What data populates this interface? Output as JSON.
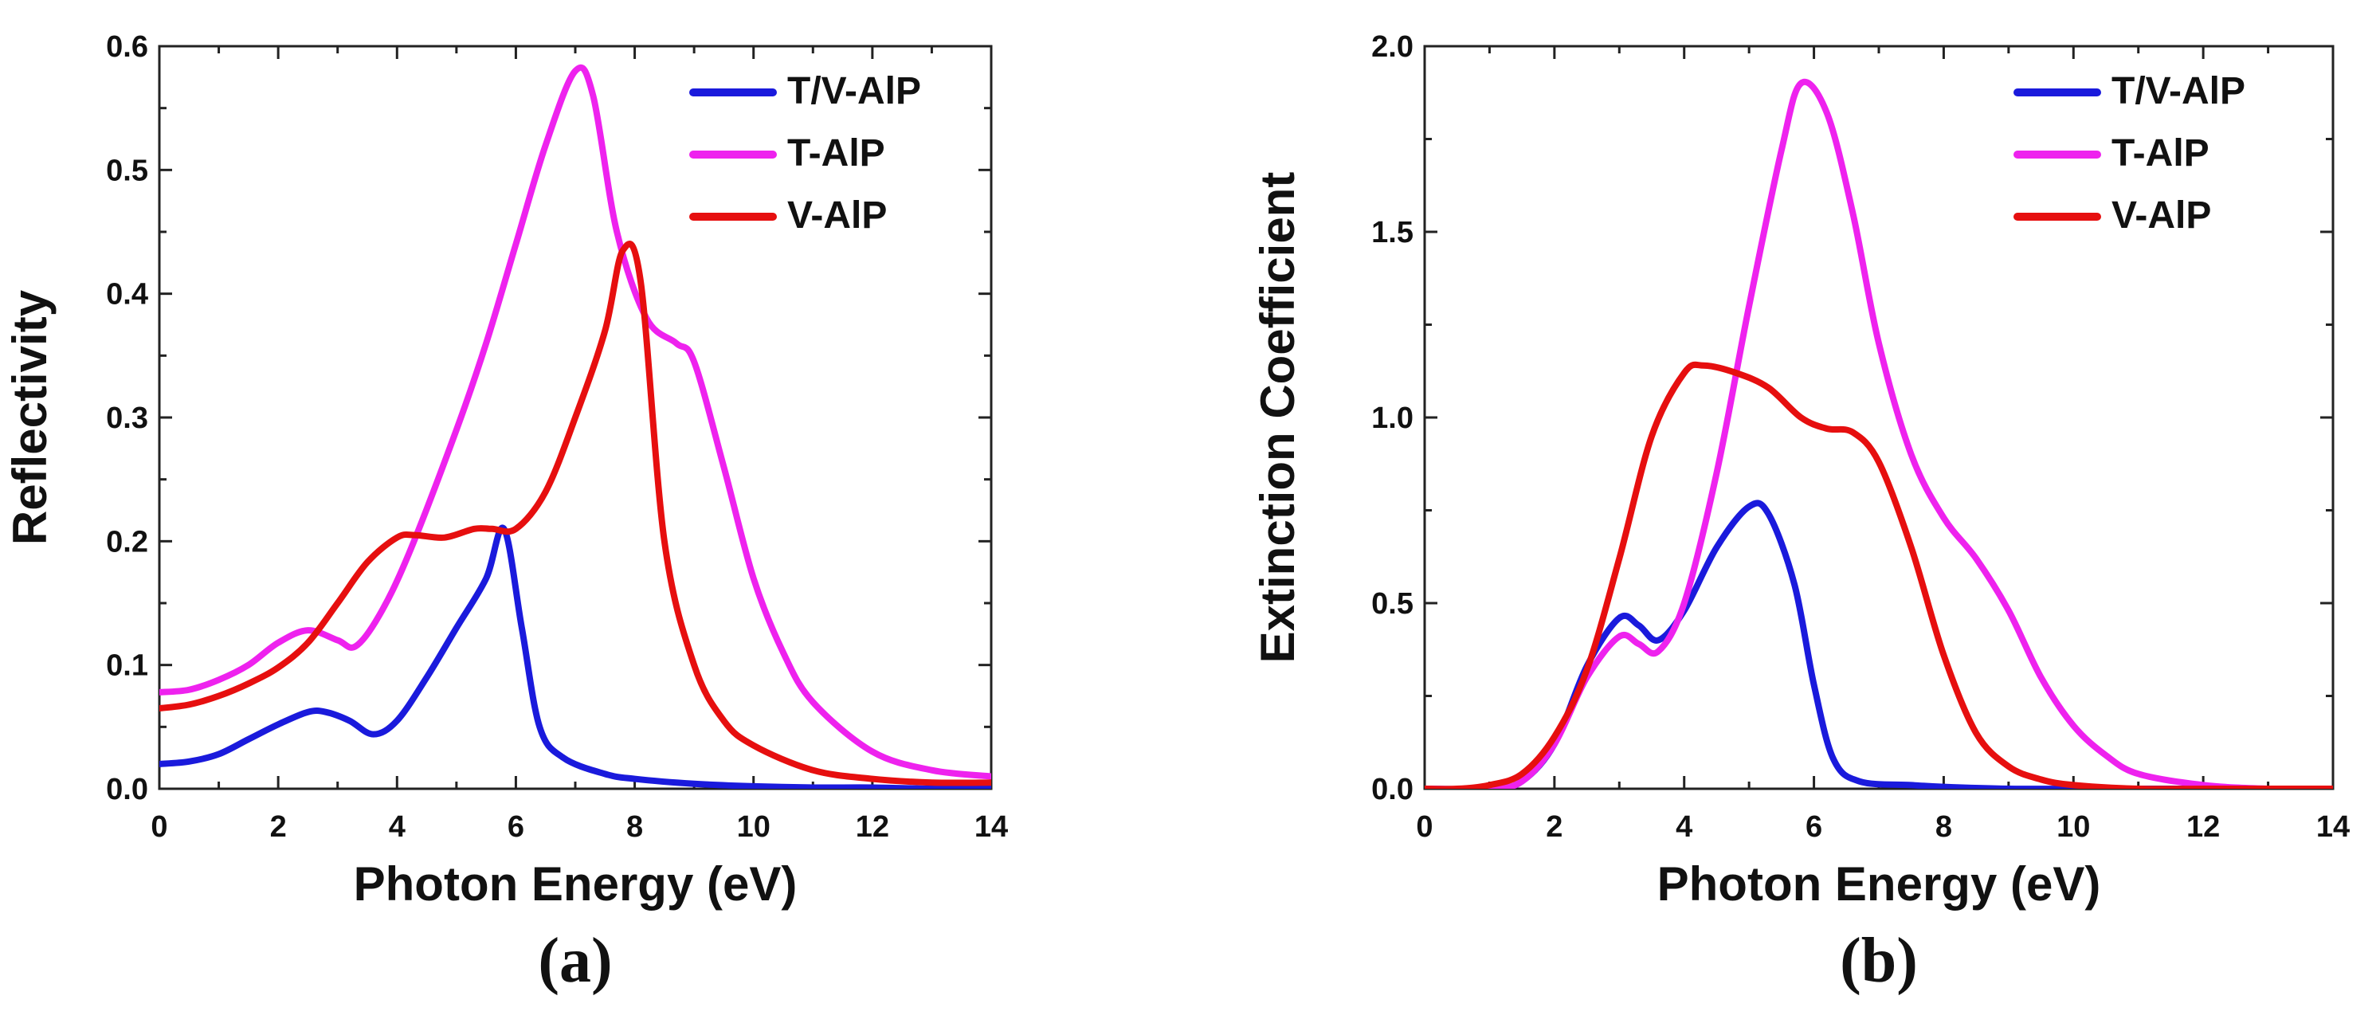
{
  "chart_data": [
    {
      "type": "line",
      "panel_label": "(a)",
      "title": "",
      "xlabel": "Photon Energy (eV)",
      "ylabel": "Reflectivity",
      "xlim": [
        0,
        14
      ],
      "ylim": [
        0,
        0.6
      ],
      "xticks": [
        0,
        2,
        4,
        6,
        8,
        10,
        12,
        14
      ],
      "yticks": [
        0.0,
        0.1,
        0.2,
        0.3,
        0.4,
        0.5,
        0.6
      ],
      "xtick_labels": [
        "0",
        "2",
        "4",
        "6",
        "8",
        "10",
        "12",
        "14"
      ],
      "ytick_labels": [
        "0.0",
        "0.1",
        "0.2",
        "0.3",
        "0.4",
        "0.5",
        "0.6"
      ],
      "legend_position": "top-right",
      "series": [
        {
          "name": "T/V-AlP",
          "color": "#1a1adc",
          "x": [
            0,
            0.5,
            1,
            1.5,
            2,
            2.5,
            2.8,
            3.2,
            3.6,
            4,
            4.5,
            5,
            5.5,
            5.8,
            6.1,
            6.4,
            6.8,
            7.5,
            8,
            9,
            10,
            11,
            12,
            13,
            14
          ],
          "y": [
            0.02,
            0.022,
            0.028,
            0.04,
            0.052,
            0.062,
            0.062,
            0.055,
            0.044,
            0.055,
            0.09,
            0.13,
            0.17,
            0.21,
            0.13,
            0.05,
            0.025,
            0.012,
            0.008,
            0.004,
            0.002,
            0.001,
            0.001,
            0.0,
            0.0
          ]
        },
        {
          "name": "T-AlP",
          "color": "#ee22ee",
          "x": [
            0,
            0.5,
            1,
            1.5,
            2,
            2.5,
            3,
            3.3,
            3.7,
            4.2,
            5,
            5.5,
            6,
            6.5,
            7,
            7.3,
            7.7,
            8.2,
            8.7,
            9,
            9.5,
            10,
            10.5,
            11,
            12,
            13,
            14
          ],
          "y": [
            0.078,
            0.08,
            0.088,
            0.1,
            0.118,
            0.128,
            0.12,
            0.115,
            0.14,
            0.19,
            0.29,
            0.36,
            0.44,
            0.52,
            0.58,
            0.56,
            0.45,
            0.38,
            0.36,
            0.345,
            0.26,
            0.17,
            0.11,
            0.07,
            0.03,
            0.015,
            0.01
          ]
        },
        {
          "name": "V-AlP",
          "color": "#e60f0f",
          "x": [
            0,
            0.5,
            1,
            1.5,
            2,
            2.5,
            3,
            3.5,
            4,
            4.3,
            4.8,
            5.3,
            5.6,
            6,
            6.5,
            7,
            7.5,
            7.8,
            8.1,
            8.5,
            9,
            9.5,
            10,
            11,
            12,
            13,
            14
          ],
          "y": [
            0.065,
            0.068,
            0.075,
            0.085,
            0.098,
            0.118,
            0.15,
            0.183,
            0.203,
            0.205,
            0.203,
            0.21,
            0.21,
            0.21,
            0.24,
            0.3,
            0.37,
            0.435,
            0.41,
            0.2,
            0.1,
            0.055,
            0.035,
            0.015,
            0.008,
            0.005,
            0.005
          ]
        }
      ]
    },
    {
      "type": "line",
      "panel_label": "(b)",
      "title": "",
      "xlabel": "Photon Energy (eV)",
      "ylabel": "Extinction Coefficient",
      "xlim": [
        0,
        14
      ],
      "ylim": [
        0,
        2.0
      ],
      "xticks": [
        0,
        2,
        4,
        6,
        8,
        10,
        12,
        14
      ],
      "yticks": [
        0.0,
        0.5,
        1.0,
        1.5,
        2.0
      ],
      "xtick_labels": [
        "0",
        "2",
        "4",
        "6",
        "8",
        "10",
        "12",
        "14"
      ],
      "ytick_labels": [
        "0.0",
        "0.5",
        "1.0",
        "1.5",
        "2.0"
      ],
      "legend_position": "top-right",
      "series": [
        {
          "name": "T/V-AlP",
          "color": "#1a1adc",
          "x": [
            0,
            1,
            1.5,
            2,
            2.5,
            3,
            3.3,
            3.6,
            4,
            4.5,
            5,
            5.3,
            5.7,
            6,
            6.3,
            6.7,
            7.5,
            8,
            9,
            10,
            11,
            12,
            13,
            14
          ],
          "y": [
            0.0,
            0.0,
            0.02,
            0.12,
            0.33,
            0.46,
            0.44,
            0.4,
            0.48,
            0.65,
            0.76,
            0.74,
            0.55,
            0.28,
            0.08,
            0.02,
            0.01,
            0.005,
            0.0,
            0.0,
            0.0,
            0.0,
            0.0,
            0.0
          ]
        },
        {
          "name": "T-AlP",
          "color": "#ee22ee",
          "x": [
            0,
            1,
            1.5,
            2,
            2.5,
            3,
            3.3,
            3.6,
            4,
            4.5,
            5,
            5.5,
            5.8,
            6.2,
            6.6,
            7,
            7.5,
            8,
            8.5,
            9,
            9.5,
            10,
            10.5,
            11,
            12,
            13,
            14
          ],
          "y": [
            0.0,
            0.0,
            0.02,
            0.12,
            0.3,
            0.41,
            0.39,
            0.37,
            0.5,
            0.85,
            1.3,
            1.72,
            1.9,
            1.82,
            1.55,
            1.2,
            0.9,
            0.73,
            0.62,
            0.48,
            0.3,
            0.17,
            0.09,
            0.04,
            0.01,
            0.0,
            0.0
          ]
        },
        {
          "name": "V-AlP",
          "color": "#e60f0f",
          "x": [
            0,
            0.5,
            1,
            1.5,
            2,
            2.5,
            3,
            3.5,
            4,
            4.3,
            4.8,
            5.3,
            5.8,
            6.2,
            6.6,
            7,
            7.5,
            8,
            8.5,
            9,
            9.5,
            10,
            11,
            12,
            13,
            14
          ],
          "y": [
            0.0,
            0.0,
            0.01,
            0.04,
            0.14,
            0.32,
            0.62,
            0.95,
            1.12,
            1.14,
            1.12,
            1.08,
            1.0,
            0.97,
            0.96,
            0.88,
            0.65,
            0.36,
            0.15,
            0.06,
            0.025,
            0.01,
            0.0,
            0.0,
            0.0,
            0.0
          ]
        }
      ]
    }
  ]
}
